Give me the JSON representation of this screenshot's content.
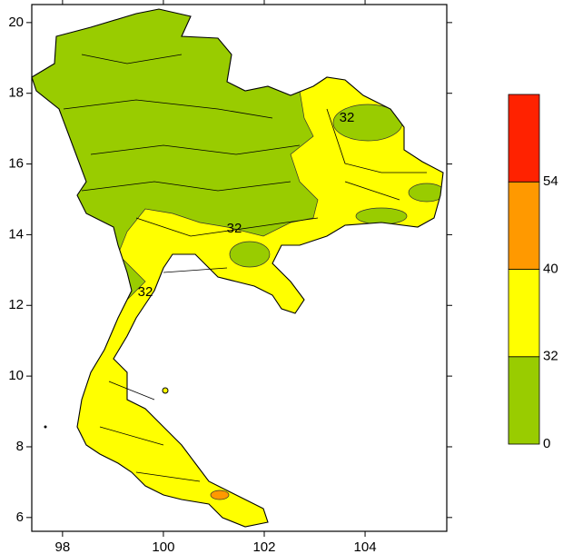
{
  "chart_data": {
    "type": "map",
    "xlim": [
      97.39,
      105.62
    ],
    "xticks": [
      98,
      100,
      102,
      104
    ],
    "ylim": [
      5.61,
      20.51
    ],
    "yticks": [
      6,
      8,
      10,
      12,
      14,
      16,
      18,
      20
    ],
    "contour_labels": [
      "32",
      "32",
      "32"
    ],
    "colorbar": {
      "levels": [
        0,
        32,
        40,
        54
      ],
      "colors": [
        "#99cc00",
        "#ffff00",
        "#ff9900",
        "#ff2200"
      ]
    }
  }
}
